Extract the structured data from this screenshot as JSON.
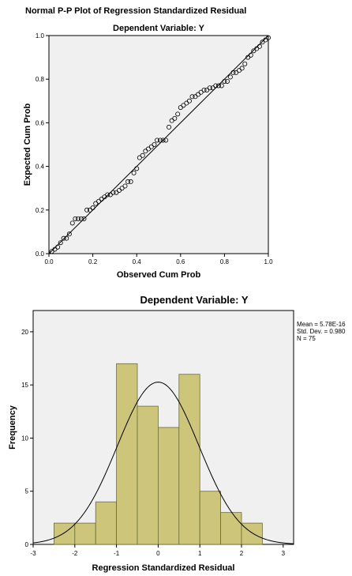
{
  "chart_data": [
    {
      "type": "scatter",
      "title": "Normal P-P Plot of Regression Standardized Residual",
      "subtitle": "Dependent Variable: Y",
      "xlabel": "Observed Cum Prob",
      "ylabel": "Expected Cum Prob",
      "xlim": [
        0,
        1
      ],
      "ylim": [
        0,
        1
      ],
      "xticks": [
        "0.0",
        "0.2",
        "0.4",
        "0.6",
        "0.8",
        "1.0"
      ],
      "yticks": [
        "0.0",
        "0.2",
        "0.4",
        "0.6",
        "0.8",
        "1.0"
      ],
      "reference_line": [
        [
          0,
          0
        ],
        [
          1,
          1
        ]
      ],
      "grid": false,
      "points": {
        "x": [
          0.013,
          0.027,
          0.04,
          0.053,
          0.067,
          0.08,
          0.093,
          0.107,
          0.12,
          0.133,
          0.147,
          0.16,
          0.173,
          0.187,
          0.2,
          0.213,
          0.227,
          0.24,
          0.253,
          0.267,
          0.28,
          0.293,
          0.307,
          0.32,
          0.333,
          0.347,
          0.36,
          0.373,
          0.387,
          0.4,
          0.413,
          0.427,
          0.44,
          0.453,
          0.467,
          0.48,
          0.493,
          0.507,
          0.52,
          0.533,
          0.547,
          0.56,
          0.573,
          0.587,
          0.6,
          0.613,
          0.627,
          0.64,
          0.653,
          0.667,
          0.68,
          0.693,
          0.707,
          0.72,
          0.733,
          0.747,
          0.76,
          0.773,
          0.787,
          0.8,
          0.813,
          0.827,
          0.84,
          0.853,
          0.867,
          0.88,
          0.893,
          0.907,
          0.92,
          0.933,
          0.947,
          0.96,
          0.973,
          0.987,
          1.0
        ],
        "y": [
          0.01,
          0.02,
          0.03,
          0.05,
          0.07,
          0.07,
          0.09,
          0.14,
          0.16,
          0.16,
          0.16,
          0.16,
          0.2,
          0.2,
          0.21,
          0.23,
          0.24,
          0.25,
          0.26,
          0.27,
          0.27,
          0.28,
          0.28,
          0.29,
          0.3,
          0.31,
          0.33,
          0.33,
          0.37,
          0.39,
          0.44,
          0.45,
          0.47,
          0.48,
          0.49,
          0.5,
          0.52,
          0.52,
          0.52,
          0.52,
          0.58,
          0.61,
          0.62,
          0.64,
          0.67,
          0.68,
          0.69,
          0.7,
          0.72,
          0.72,
          0.73,
          0.74,
          0.75,
          0.75,
          0.76,
          0.76,
          0.77,
          0.77,
          0.77,
          0.79,
          0.79,
          0.81,
          0.83,
          0.83,
          0.84,
          0.85,
          0.87,
          0.9,
          0.91,
          0.93,
          0.94,
          0.95,
          0.97,
          0.98,
          0.99
        ]
      }
    },
    {
      "type": "bar",
      "title": "Dependent Variable: Y",
      "xlabel": "Regression Standardized Residual",
      "ylabel": "Frequency",
      "xlim": [
        -3.0,
        3.25
      ],
      "ylim": [
        0,
        22
      ],
      "xticks": [
        "-3",
        "-2",
        "-1",
        "0",
        "1",
        "2",
        "3"
      ],
      "yticks": [
        "0",
        "5",
        "10",
        "15",
        "20"
      ],
      "bin_edges": [
        -2.5,
        -2.0,
        -1.5,
        -1.0,
        -0.5,
        0.0,
        0.5,
        1.0,
        1.5,
        2.0,
        2.5
      ],
      "values": [
        2,
        2,
        4,
        17,
        13,
        11,
        16,
        5,
        3,
        2
      ],
      "normal_curve": {
        "mean": 0,
        "sd": 0.98,
        "n": 75,
        "bin_width": 0.5
      },
      "stats_lines": [
        "Mean = 5.78E-16",
        "Std. Dev. = 0.980",
        "N = 75"
      ],
      "colors": {
        "bar_fill": "#ccc57a",
        "bar_stroke": "#6b6b3a",
        "plot_bg": "#f0f0f0",
        "curve": "#000000"
      }
    }
  ]
}
